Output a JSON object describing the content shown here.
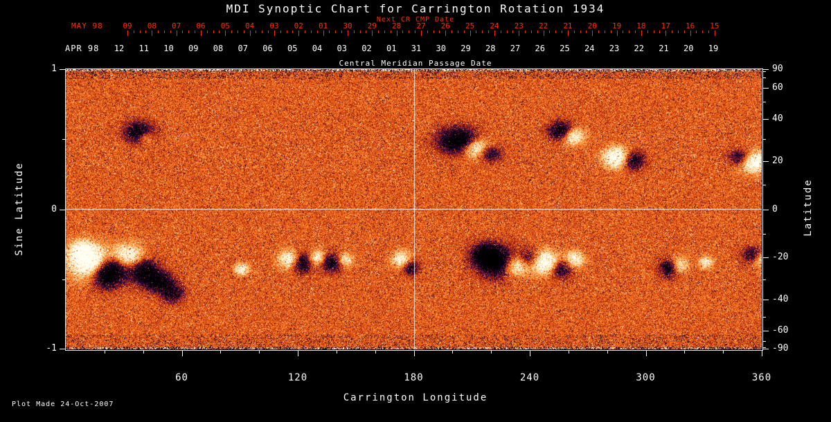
{
  "header": {
    "title": "MDI Synoptic Chart for Carrington Rotation 1934"
  },
  "top_axis": {
    "label": "Next CR CMP Date",
    "month": "MAY 98",
    "days": [
      "09",
      "08",
      "07",
      "06",
      "05",
      "04",
      "03",
      "02",
      "01",
      "30",
      "29",
      "28",
      "27",
      "26",
      "25",
      "24",
      "23",
      "22",
      "21",
      "20",
      "19",
      "18",
      "17",
      "16",
      "15"
    ]
  },
  "cmp_axis": {
    "label": "Central Meridian Passage Date",
    "month": "APR 98",
    "days": [
      "12",
      "11",
      "10",
      "09",
      "08",
      "07",
      "06",
      "05",
      "04",
      "03",
      "02",
      "01",
      "31",
      "30",
      "29",
      "28",
      "27",
      "26",
      "25",
      "24",
      "23",
      "22",
      "21",
      "20",
      "19"
    ]
  },
  "footer": {
    "plot_made": "Plot Made 24-Oct-2007"
  },
  "colors": {
    "background": "#000000",
    "red_axis": "#ff2e00",
    "axis_text": "#ffffff",
    "quiet_sun": "#f06414",
    "negative_field": "#280550",
    "positive_field": "#fffff2"
  },
  "chart_data": {
    "type": "heatmap",
    "title": "MDI Synoptic Chart for Carrington Rotation 1934",
    "xlabel": "Carrington Longitude",
    "ylabel_left": "Sine Latitude",
    "ylabel_right": "Latitude",
    "xlim": [
      0,
      360
    ],
    "ylim_sine_latitude": [
      -1,
      1
    ],
    "x_ticks": [
      60,
      120,
      180,
      240,
      300,
      360
    ],
    "x_minor_tick_step_deg": 20,
    "left_ticks": [
      1,
      0,
      -1
    ],
    "left_minor_ticks": [
      0.5,
      -0.5
    ],
    "right_tick_latitudes": [
      90,
      60,
      40,
      20,
      0,
      -20,
      -40,
      -60,
      -90
    ],
    "right_minor_step_deg": 10,
    "crosshair": {
      "longitude": 180,
      "sine_latitude": 0
    },
    "colormap": "MDI magnetogram: dark purple/black = negative magnetic field, orange speckle = quiet sun, white/yellow = positive field",
    "background_noise_sigma": 0.32,
    "active_regions": [
      {
        "lon": 38,
        "sine_lat": 0.55,
        "amp": -2.6,
        "w_deg": 5,
        "h_sine": 0.05
      },
      {
        "lon": 41,
        "sine_lat": 0.52,
        "amp": 1.6,
        "w_deg": 3,
        "h_sine": 0.035
      },
      {
        "lon": 203,
        "sine_lat": 0.49,
        "amp": -3.0,
        "w_deg": 7,
        "h_sine": 0.06
      },
      {
        "lon": 212,
        "sine_lat": 0.44,
        "amp": 2.4,
        "w_deg": 5,
        "h_sine": 0.05
      },
      {
        "lon": 219,
        "sine_lat": 0.4,
        "amp": -1.8,
        "w_deg": 4,
        "h_sine": 0.04
      },
      {
        "lon": 256,
        "sine_lat": 0.56,
        "amp": -2.4,
        "w_deg": 4,
        "h_sine": 0.045
      },
      {
        "lon": 262,
        "sine_lat": 0.52,
        "amp": 2.0,
        "w_deg": 4,
        "h_sine": 0.04
      },
      {
        "lon": 285,
        "sine_lat": 0.37,
        "amp": 2.6,
        "w_deg": 5,
        "h_sine": 0.05
      },
      {
        "lon": 293,
        "sine_lat": 0.35,
        "amp": -2.2,
        "w_deg": 4,
        "h_sine": 0.045
      },
      {
        "lon": 349,
        "sine_lat": 0.37,
        "amp": -1.8,
        "w_deg": 4,
        "h_sine": 0.04
      },
      {
        "lon": 356,
        "sine_lat": 0.34,
        "amp": 2.6,
        "w_deg": 5,
        "h_sine": 0.05
      },
      {
        "lon": 8,
        "sine_lat": -0.3,
        "amp": 2.0,
        "w_deg": 4,
        "h_sine": 0.05
      },
      {
        "lon": 13,
        "sine_lat": -0.38,
        "amp": 3.0,
        "w_deg": 7,
        "h_sine": 0.08
      },
      {
        "lon": 20,
        "sine_lat": -0.48,
        "amp": -2.2,
        "w_deg": 5,
        "h_sine": 0.06
      },
      {
        "lon": 25,
        "sine_lat": -0.41,
        "amp": -3.0,
        "w_deg": 6,
        "h_sine": 0.07
      },
      {
        "lon": 31,
        "sine_lat": -0.35,
        "amp": 2.8,
        "w_deg": 6,
        "h_sine": 0.065
      },
      {
        "lon": 40,
        "sine_lat": -0.44,
        "amp": -2.6,
        "w_deg": 5,
        "h_sine": 0.06
      },
      {
        "lon": 48,
        "sine_lat": -0.52,
        "amp": -2.2,
        "w_deg": 5,
        "h_sine": 0.05
      },
      {
        "lon": 55,
        "sine_lat": -0.6,
        "amp": -1.8,
        "w_deg": 4,
        "h_sine": 0.045
      },
      {
        "lon": 91,
        "sine_lat": -0.43,
        "amp": 1.8,
        "w_deg": 2.5,
        "h_sine": 0.03
      },
      {
        "lon": 116,
        "sine_lat": -0.36,
        "amp": 2.2,
        "w_deg": 4,
        "h_sine": 0.045
      },
      {
        "lon": 122,
        "sine_lat": -0.38,
        "amp": -2.4,
        "w_deg": 4,
        "h_sine": 0.05
      },
      {
        "lon": 130,
        "sine_lat": -0.35,
        "amp": 2.0,
        "w_deg": 3.5,
        "h_sine": 0.04
      },
      {
        "lon": 137,
        "sine_lat": -0.38,
        "amp": -2.2,
        "w_deg": 4,
        "h_sine": 0.045
      },
      {
        "lon": 144,
        "sine_lat": -0.36,
        "amp": 1.6,
        "w_deg": 3,
        "h_sine": 0.035
      },
      {
        "lon": 174,
        "sine_lat": -0.36,
        "amp": 2.0,
        "w_deg": 3.5,
        "h_sine": 0.04
      },
      {
        "lon": 178,
        "sine_lat": -0.41,
        "amp": -1.8,
        "w_deg": 3,
        "h_sine": 0.04
      },
      {
        "lon": 217,
        "sine_lat": -0.33,
        "amp": -2.4,
        "w_deg": 5,
        "h_sine": 0.055
      },
      {
        "lon": 224,
        "sine_lat": -0.38,
        "amp": -3.0,
        "w_deg": 7,
        "h_sine": 0.07
      },
      {
        "lon": 232,
        "sine_lat": -0.4,
        "amp": 2.6,
        "w_deg": 5,
        "h_sine": 0.055
      },
      {
        "lon": 240,
        "sine_lat": -0.36,
        "amp": -2.2,
        "w_deg": 4,
        "h_sine": 0.05
      },
      {
        "lon": 247,
        "sine_lat": -0.38,
        "amp": 2.8,
        "w_deg": 6,
        "h_sine": 0.055
      },
      {
        "lon": 256,
        "sine_lat": -0.42,
        "amp": -2.0,
        "w_deg": 4,
        "h_sine": 0.05
      },
      {
        "lon": 263,
        "sine_lat": -0.36,
        "amp": 1.8,
        "w_deg": 3.5,
        "h_sine": 0.04
      },
      {
        "lon": 312,
        "sine_lat": -0.42,
        "amp": -2.0,
        "w_deg": 3.5,
        "h_sine": 0.045
      },
      {
        "lon": 317,
        "sine_lat": -0.4,
        "amp": 1.7,
        "w_deg": 3,
        "h_sine": 0.04
      },
      {
        "lon": 331,
        "sine_lat": -0.38,
        "amp": 1.5,
        "w_deg": 2.5,
        "h_sine": 0.03
      },
      {
        "lon": 355,
        "sine_lat": -0.33,
        "amp": -1.7,
        "w_deg": 3.5,
        "h_sine": 0.04
      },
      {
        "lon": 359,
        "sine_lat": -0.36,
        "amp": 1.5,
        "w_deg": 3,
        "h_sine": 0.035
      }
    ]
  }
}
